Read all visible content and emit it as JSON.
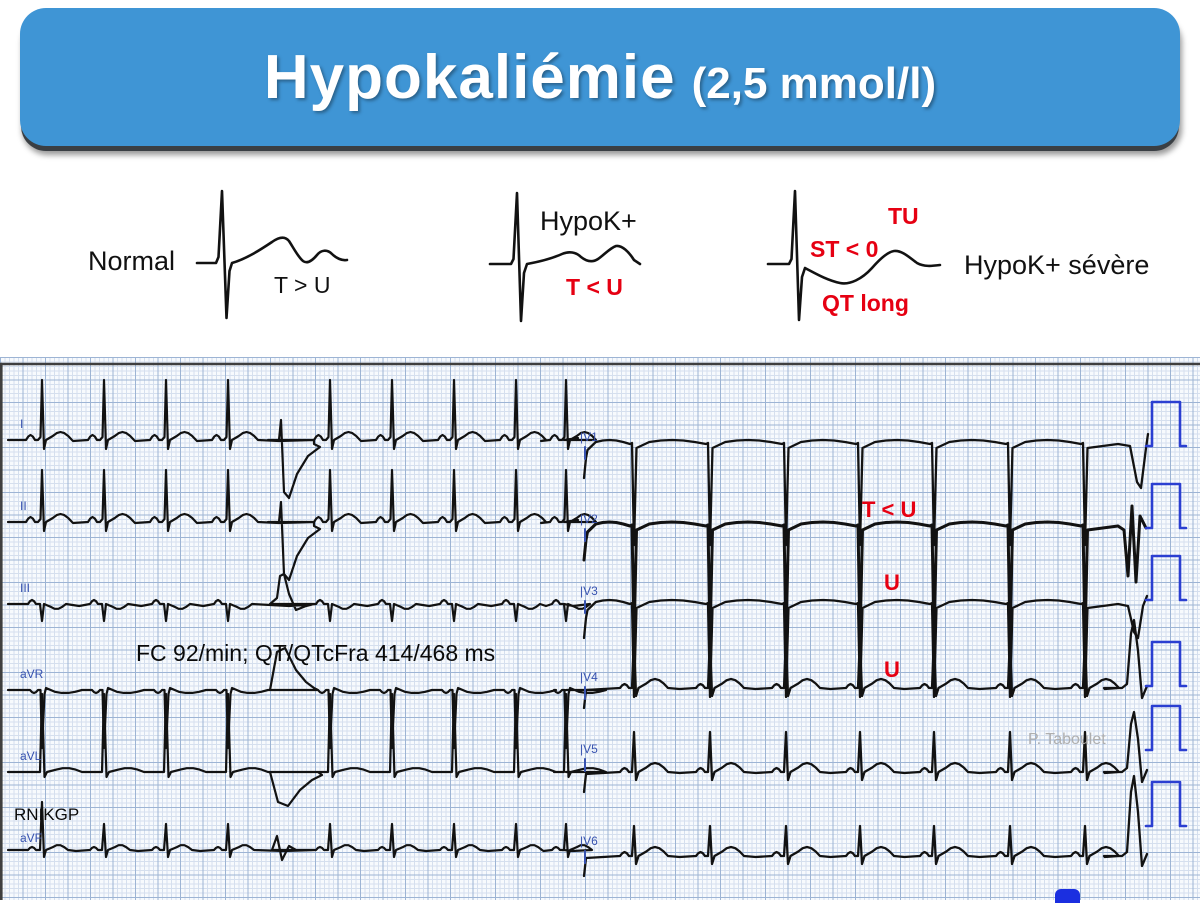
{
  "slide": {
    "title": "Hypokaliémie",
    "subtitle": "(2,5 mmol/l)"
  },
  "diagrams": {
    "normal": {
      "label": "Normal",
      "annotation": "T > U"
    },
    "moderate": {
      "label": "HypoK+",
      "annotation": "T < U"
    },
    "severe": {
      "label": "HypoK+ sévère",
      "annotation_tu": "TU",
      "annotation_st": "ST < 0",
      "annotation_qt": "QT long"
    }
  },
  "ecg": {
    "measurements": "FC 92/min; QT/QTcFra  414/468 ms",
    "patient_code": "RNIKGP",
    "watermark": "P. Taboulet",
    "annotations": {
      "t_less_u": "T < U",
      "u1": "U",
      "u2": "U"
    },
    "limb_leads": [
      "I",
      "II",
      "III",
      "aVR",
      "aVL",
      "aVF"
    ],
    "precordial_leads": [
      "|V1",
      "|V2",
      "|V3",
      "|V4",
      "|V5",
      "|V6"
    ]
  },
  "colors": {
    "header_blue": "#3f95d5",
    "annotation_red": "#e60012",
    "trace_black": "#121212",
    "lead_label_blue": "#3752b0",
    "pulse_blue": "#2b3fd1",
    "watermark_gray": "#aeaeae"
  }
}
